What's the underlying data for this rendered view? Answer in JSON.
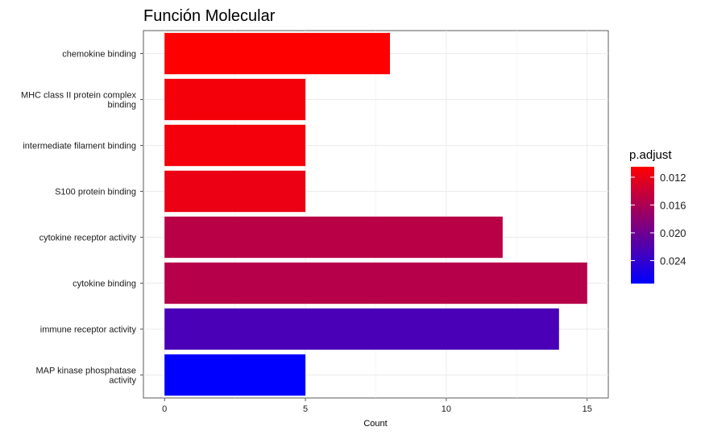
{
  "chart_data": {
    "type": "bar",
    "orientation": "horizontal",
    "title": "Función Molecular",
    "xlabel": "Count",
    "ylabel": "",
    "xlim": [
      -0.75,
      15.75
    ],
    "xticks": [
      0,
      5,
      10,
      15
    ],
    "grid": true,
    "legend_position": "right",
    "categories": [
      "chemokine binding",
      "MHC class II protein complex\nbinding",
      "intermediate filament binding",
      "S100 protein binding",
      "cytokine receptor activity",
      "cytokine binding",
      "immune receptor activity",
      "MAP kinase phosphatase\nactivity"
    ],
    "values": [
      8,
      5,
      5,
      5,
      12,
      15,
      14,
      5
    ],
    "p_adjust": [
      0.0105,
      0.0112,
      0.0113,
      0.0118,
      0.0151,
      0.0153,
      0.0225,
      0.0273
    ],
    "colorbar": {
      "title": "p.adjust",
      "min": 0.0105,
      "max": 0.0273,
      "low_color": "#ff0000",
      "high_color": "#0000ff",
      "ticks": [
        0.012,
        0.016,
        0.02,
        0.024
      ],
      "tick_labels": [
        "0.012",
        "0.016",
        "0.020",
        "0.024"
      ]
    }
  }
}
